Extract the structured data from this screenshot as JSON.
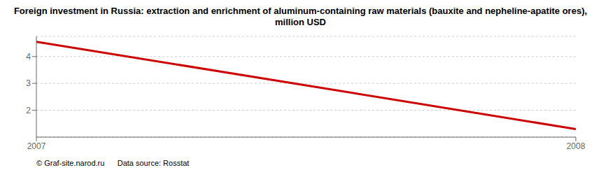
{
  "chart_data": {
    "type": "line",
    "title": "Foreign investment in Russia: extraction and enrichment of aluminum-containing raw materials (bauxite and nepheline-apatite ores), million USD",
    "x": [
      2007,
      2008
    ],
    "values": [
      4.55,
      1.3
    ],
    "color": "#cc0000",
    "xlim": [
      2007,
      2008
    ],
    "ylim": [
      1.0,
      4.75
    ],
    "xticks": [
      2007,
      2008
    ],
    "yticks": [
      2,
      3,
      4
    ],
    "grid": true,
    "annotations": [
      "© Graf-site.narod.ru      Data source: Rosstat"
    ]
  }
}
